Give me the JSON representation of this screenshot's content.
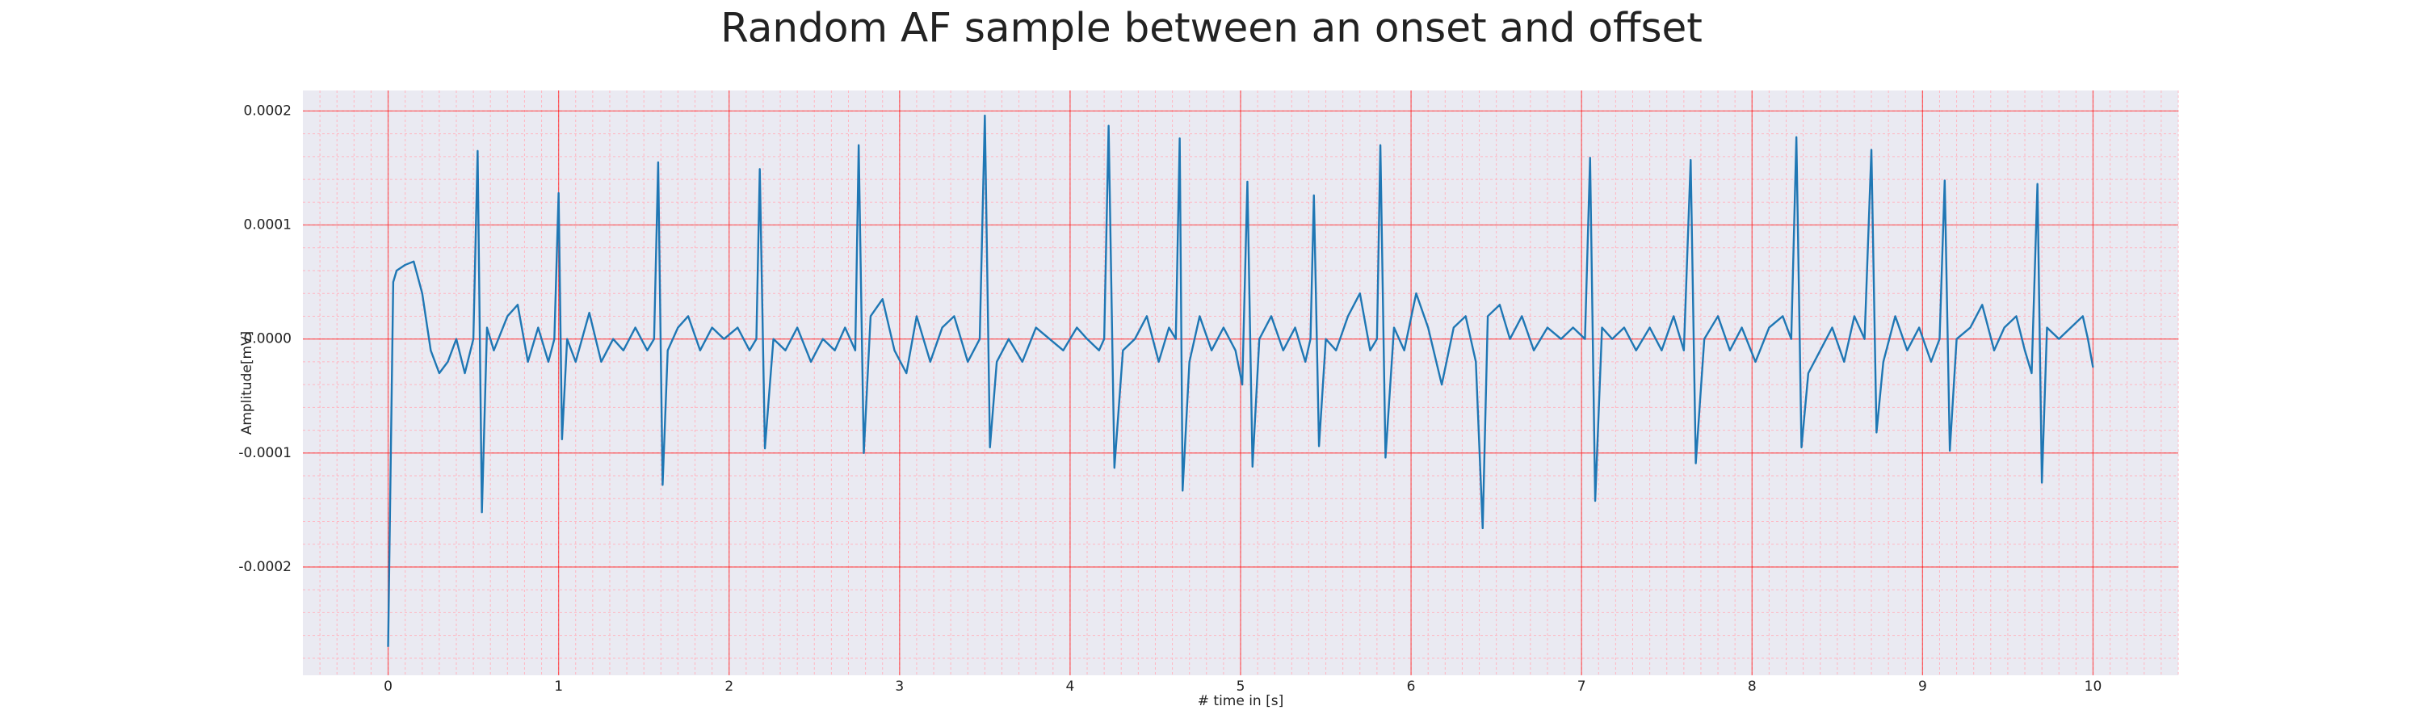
{
  "chart_data": {
    "type": "line",
    "title": "Random AF sample between an onset and offset",
    "xlabel": "# time in [s]",
    "ylabel": "Amplitude[mV]",
    "color": "#1f77b4",
    "background": "#eaeaf2",
    "grid": true,
    "grid_color": "#ff0000",
    "minor_grid": true,
    "minor_grid_color": "#ffb6c1",
    "xlim": [
      -0.5,
      10.5
    ],
    "ylim": [
      -0.000295,
      0.000218
    ],
    "xticks": [
      0,
      1,
      2,
      3,
      4,
      5,
      6,
      7,
      8,
      9,
      10
    ],
    "yticks": [
      {
        "value": 0.0002,
        "label": "0.0002"
      },
      {
        "value": 0.0001,
        "label": "0.0001"
      },
      {
        "value": 0,
        "label": "0.0000"
      },
      {
        "value": -0.0001,
        "label": "-0.0001"
      },
      {
        "value": -0.0002,
        "label": "-0.0002"
      }
    ],
    "x": [
      0,
      0.03,
      0.05,
      0.1,
      0.15,
      0.2,
      0.25,
      0.3,
      0.35,
      0.4,
      0.45,
      0.5,
      0.525,
      0.55,
      0.58,
      0.62,
      0.7,
      0.76,
      0.82,
      0.88,
      0.94,
      0.975,
      1.0,
      1.02,
      1.05,
      1.1,
      1.18,
      1.25,
      1.32,
      1.38,
      1.45,
      1.52,
      1.56,
      1.584,
      1.61,
      1.64,
      1.7,
      1.76,
      1.83,
      1.9,
      1.97,
      2.05,
      2.12,
      2.16,
      2.18,
      2.21,
      2.26,
      2.33,
      2.4,
      2.48,
      2.55,
      2.62,
      2.68,
      2.74,
      2.76,
      2.79,
      2.83,
      2.9,
      2.97,
      3.04,
      3.1,
      3.18,
      3.25,
      3.32,
      3.4,
      3.47,
      3.5,
      3.53,
      3.57,
      3.64,
      3.72,
      3.8,
      3.88,
      3.96,
      4.04,
      4.1,
      4.17,
      4.2,
      4.226,
      4.26,
      4.31,
      4.38,
      4.45,
      4.52,
      4.58,
      4.62,
      4.643,
      4.66,
      4.7,
      4.76,
      4.83,
      4.9,
      4.97,
      5.01,
      5.04,
      5.07,
      5.11,
      5.18,
      5.25,
      5.32,
      5.38,
      5.41,
      5.43,
      5.46,
      5.5,
      5.56,
      5.63,
      5.7,
      5.76,
      5.8,
      5.82,
      5.85,
      5.9,
      5.96,
      6.03,
      6.1,
      6.18,
      6.25,
      6.32,
      6.38,
      6.42,
      6.45,
      6.52,
      6.58,
      6.65,
      6.72,
      6.8,
      6.88,
      6.95,
      7.02,
      7.05,
      7.08,
      7.12,
      7.18,
      7.25,
      7.32,
      7.4,
      7.47,
      7.54,
      7.6,
      7.64,
      7.67,
      7.72,
      7.8,
      7.87,
      7.94,
      8.02,
      8.1,
      8.18,
      8.23,
      8.26,
      8.29,
      8.33,
      8.4,
      8.47,
      8.54,
      8.6,
      8.66,
      8.7,
      8.73,
      8.77,
      8.84,
      8.91,
      8.98,
      9.05,
      9.1,
      9.13,
      9.16,
      9.2,
      9.28,
      9.35,
      9.42,
      9.48,
      9.55,
      9.6,
      9.64,
      9.674,
      9.7,
      9.73,
      9.8,
      9.87,
      9.94,
      9.97,
      10.0
    ],
    "values": [
      -0.00027,
      5e-05,
      6e-05,
      6.5e-05,
      6.8e-05,
      4e-05,
      -1e-05,
      -3e-05,
      -2e-05,
      0,
      -3e-05,
      0,
      0.000165,
      -0.000152,
      1e-05,
      -1e-05,
      2e-05,
      3e-05,
      -2e-05,
      1e-05,
      -2e-05,
      0,
      0.000128,
      -8.8e-05,
      0,
      -2e-05,
      2.3e-05,
      -2e-05,
      0,
      -1e-05,
      1e-05,
      -1e-05,
      0,
      0.000155,
      -0.000128,
      -1e-05,
      1e-05,
      2e-05,
      -1e-05,
      1e-05,
      0,
      1e-05,
      -1e-05,
      0,
      0.000149,
      -9.6e-05,
      0,
      -1e-05,
      1e-05,
      -2e-05,
      0,
      -1e-05,
      1e-05,
      -1e-05,
      0.00017,
      -0.0001,
      2e-05,
      3.5e-05,
      -1e-05,
      -3e-05,
      2e-05,
      -2e-05,
      1e-05,
      2e-05,
      -2e-05,
      0,
      0.000196,
      -9.5e-05,
      -2e-05,
      0,
      -2e-05,
      1e-05,
      0,
      -1e-05,
      1e-05,
      0,
      -1e-05,
      0,
      0.000187,
      -0.000113,
      -1e-05,
      0,
      2e-05,
      -2e-05,
      1e-05,
      0,
      0.000176,
      -0.000133,
      -2e-05,
      2e-05,
      -1e-05,
      1e-05,
      -1e-05,
      -4e-05,
      0.000138,
      -0.000112,
      0,
      2e-05,
      -1e-05,
      1e-05,
      -2e-05,
      0,
      0.000126,
      -9.4e-05,
      0,
      -1e-05,
      2e-05,
      4e-05,
      -1e-05,
      0,
      0.00017,
      -0.000104,
      1e-05,
      -1e-05,
      4e-05,
      1e-05,
      -4e-05,
      1e-05,
      2e-05,
      -2e-05,
      -0.000166,
      2e-05,
      3e-05,
      0,
      2e-05,
      -1e-05,
      1e-05,
      0,
      1e-05,
      0,
      0.000159,
      -0.000142,
      1e-05,
      0,
      1e-05,
      -1e-05,
      1e-05,
      -1e-05,
      2e-05,
      -1e-05,
      0.000157,
      -0.000109,
      0,
      2e-05,
      -1e-05,
      1e-05,
      -2e-05,
      1e-05,
      2e-05,
      0,
      0.000177,
      -9.5e-05,
      -3e-05,
      -1e-05,
      1e-05,
      -2e-05,
      2e-05,
      0,
      0.000166,
      -8.2e-05,
      -2e-05,
      2e-05,
      -1e-05,
      1e-05,
      -2e-05,
      0,
      0.000139,
      -9.8e-05,
      0,
      1e-05,
      3e-05,
      -1e-05,
      1e-05,
      2e-05,
      -1e-05,
      -3e-05,
      0.000136,
      -0.000126,
      1e-05,
      0,
      1e-05,
      2e-05,
      0,
      -2.5e-05
    ]
  }
}
